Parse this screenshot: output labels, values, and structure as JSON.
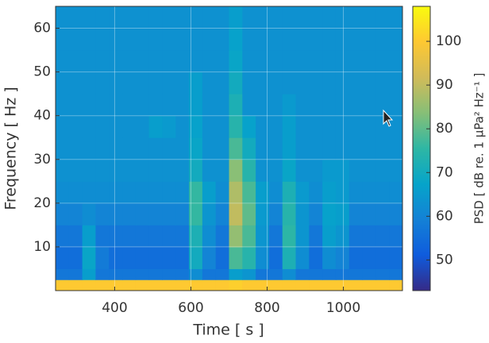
{
  "chart_data": {
    "type": "heatmap",
    "xlabel": "Time [ s ]",
    "ylabel": "Frequency [ Hz ]",
    "colorbar_label": "PSD [ dB re. 1 μPa² Hz⁻¹ ]",
    "colormap": "parula",
    "xlim": [
      245,
      1155
    ],
    "ylim": [
      0,
      65
    ],
    "clim": [
      43,
      108
    ],
    "xticks": [
      400,
      600,
      800,
      1000
    ],
    "yticks": [
      10,
      20,
      30,
      40,
      50,
      60
    ],
    "cticks": [
      50,
      60,
      70,
      80,
      90,
      100
    ],
    "grid": true,
    "xbins": [
      245,
      280,
      315,
      350,
      385,
      420,
      455,
      490,
      525,
      560,
      595,
      630,
      665,
      700,
      735,
      770,
      805,
      840,
      875,
      910,
      945,
      980,
      1015,
      1050,
      1085,
      1120,
      1155
    ],
    "ybins": [
      0,
      2.5,
      5,
      10,
      15,
      20,
      25,
      30,
      35,
      40,
      45,
      50,
      55,
      60,
      65
    ],
    "z": [
      [
        100,
        100,
        100,
        100,
        100,
        100,
        100,
        100,
        100,
        100,
        100,
        100,
        100,
        101,
        100,
        100,
        100,
        100,
        100,
        100,
        100,
        100,
        100,
        100,
        100,
        100
      ],
      [
        57,
        57,
        66,
        57,
        57,
        57,
        57,
        57,
        57,
        57,
        62,
        57,
        57,
        66,
        64,
        57,
        57,
        62,
        57,
        57,
        57,
        57,
        57,
        57,
        57,
        57
      ],
      [
        55,
        55,
        68,
        58,
        55,
        55,
        55,
        55,
        55,
        55,
        70,
        60,
        55,
        78,
        74,
        62,
        55,
        72,
        62,
        55,
        62,
        60,
        55,
        55,
        55,
        55
      ],
      [
        57,
        57,
        66,
        57,
        57,
        57,
        57,
        57,
        57,
        57,
        72,
        62,
        57,
        85,
        78,
        64,
        57,
        75,
        64,
        57,
        66,
        64,
        57,
        57,
        57,
        57
      ],
      [
        60,
        60,
        62,
        60,
        60,
        60,
        60,
        60,
        60,
        60,
        76,
        64,
        60,
        90,
        80,
        65,
        60,
        74,
        64,
        60,
        67,
        66,
        60,
        60,
        60,
        60
      ],
      [
        62,
        62,
        62,
        62,
        62,
        62,
        62,
        62,
        62,
        62,
        76,
        66,
        62,
        88,
        78,
        66,
        62,
        72,
        65,
        62,
        66,
        65,
        62,
        62,
        62,
        62
      ],
      [
        63,
        63,
        63,
        63,
        63,
        63,
        63,
        63,
        63,
        63,
        70,
        63,
        63,
        84,
        74,
        63,
        63,
        68,
        63,
        63,
        65,
        65,
        63,
        63,
        63,
        63
      ],
      [
        63,
        63,
        63,
        63,
        63,
        63,
        63,
        63,
        63,
        63,
        68,
        63,
        63,
        78,
        70,
        63,
        63,
        66,
        63,
        63,
        63,
        63,
        63,
        63,
        63,
        63
      ],
      [
        63,
        63,
        63,
        63,
        63,
        63,
        63,
        66,
        65,
        63,
        67,
        63,
        63,
        74,
        67,
        63,
        63,
        66,
        63,
        63,
        63,
        63,
        63,
        63,
        63,
        63
      ],
      [
        63,
        63,
        63,
        63,
        63,
        63,
        63,
        63,
        63,
        63,
        66,
        63,
        63,
        72,
        63,
        63,
        63,
        65,
        63,
        63,
        63,
        63,
        63,
        63,
        63,
        63
      ],
      [
        63,
        63,
        63,
        63,
        63,
        63,
        63,
        63,
        63,
        63,
        66,
        63,
        63,
        70,
        63,
        63,
        63,
        63,
        63,
        63,
        63,
        63,
        63,
        63,
        63,
        63
      ],
      [
        63,
        63,
        63,
        63,
        63,
        63,
        63,
        63,
        63,
        63,
        63,
        63,
        63,
        68,
        63,
        63,
        63,
        63,
        63,
        63,
        63,
        63,
        63,
        63,
        63,
        63
      ],
      [
        63,
        63,
        63,
        63,
        63,
        63,
        63,
        63,
        63,
        63,
        63,
        63,
        63,
        67,
        63,
        63,
        63,
        63,
        63,
        63,
        63,
        63,
        63,
        63,
        63,
        63
      ],
      [
        63,
        63,
        63,
        63,
        63,
        63,
        63,
        63,
        63,
        63,
        63,
        63,
        63,
        66,
        63,
        63,
        63,
        63,
        63,
        63,
        63,
        63,
        63,
        63,
        63,
        63
      ]
    ]
  }
}
